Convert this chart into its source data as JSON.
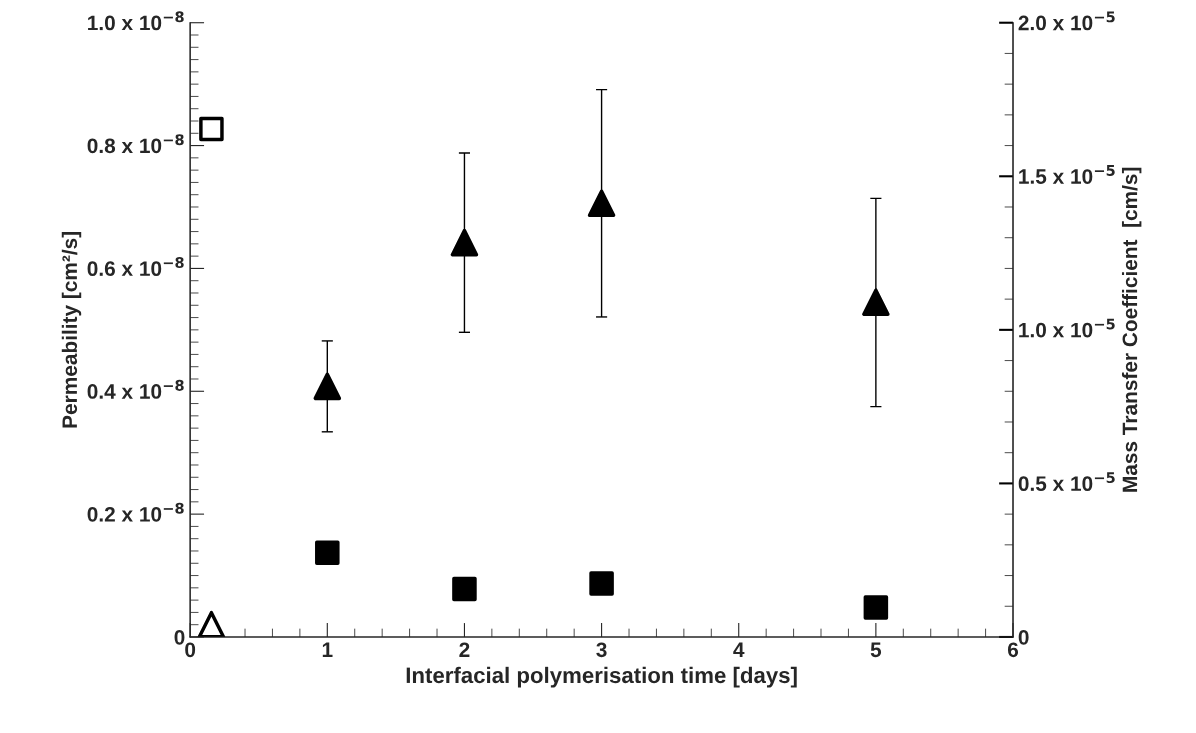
{
  "chart_data": {
    "type": "scatter",
    "xlabel": "Interfacial polymerisation time [days]",
    "ylabel": "Permeability [cm²/s]",
    "y2label": "Mass Transfer Coefficient  [cm/s]",
    "xlim": [
      0,
      6
    ],
    "xticks": [
      0,
      1,
      2,
      3,
      4,
      5,
      6
    ],
    "ylim": [
      0,
      1e-08
    ],
    "yticks": [
      {
        "value": 0,
        "label": "0"
      },
      {
        "value": 2e-09,
        "label": "0.2 x 10$^{−8}$"
      },
      {
        "value": 4e-09,
        "label": "0.4 x 10$^{−8}$"
      },
      {
        "value": 6e-09,
        "label": "0.6 x 10$^{−8}$"
      },
      {
        "value": 8e-09,
        "label": "0.8 x 10$^{−8}$"
      },
      {
        "value": 1e-08,
        "label": "1.0 x 10$^{−8}$"
      }
    ],
    "y2lim": [
      0,
      2e-05
    ],
    "y2ticks": [
      {
        "value": 0,
        "label": "0"
      },
      {
        "value": 5e-06,
        "label": "0.5 x 10$^{−5}$"
      },
      {
        "value": 1e-05,
        "label": "1.0 x 10$^{−5}$"
      },
      {
        "value": 1.5e-05,
        "label": "1.5 x 10$^{−5}$"
      },
      {
        "value": 2e-05,
        "label": "2.0 x 10$^{−5}$"
      }
    ],
    "grid": false,
    "legend": false,
    "series": [
      {
        "marker": "triangle",
        "color": "#000000",
        "x": [
          1,
          2,
          3,
          5
        ],
        "values": [
          4.08e-09,
          6.42e-09,
          7.06e-09,
          5.45e-09
        ],
        "errors": [
          [
            3.34e-09,
            4.82e-09
          ],
          [
            4.96e-09,
            7.88e-09
          ],
          [
            5.21e-09,
            8.91e-09
          ],
          [
            3.75e-09,
            7.14e-09
          ]
        ]
      },
      {
        "marker": "square",
        "color": "#000000",
        "x": [
          1,
          2,
          3,
          5
        ],
        "values": [
          1.37e-09,
          7.8e-10,
          8.7e-10,
          4.8e-10
        ]
      },
      {
        "marker": "triangle",
        "color": "#ffffff",
        "x": [
          0.155
        ],
        "values": [
          2e-10
        ]
      },
      {
        "marker": "square",
        "color": "#ffffff",
        "x": [
          0.155
        ],
        "values": [
          8.27e-09
        ]
      }
    ]
  }
}
